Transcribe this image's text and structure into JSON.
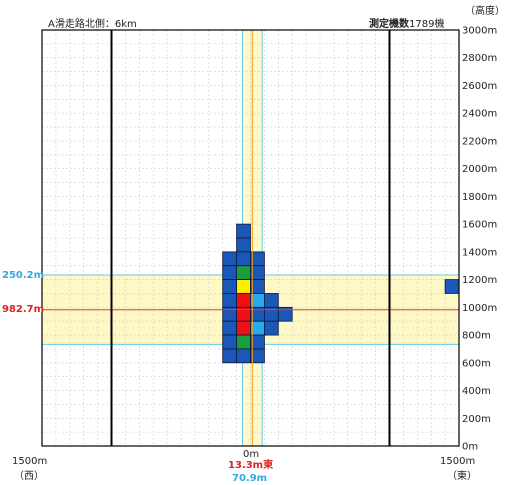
{
  "header": {
    "subtitle": "A滑走路北側：6km",
    "count_label": "測定機数",
    "count_value": "1789機",
    "altitude_unit": "（高度）"
  },
  "axes": {
    "x_left_label": "1500m",
    "x_right_label": "1500m",
    "x_center_label": "0m",
    "west_label": "（西）",
    "east_label": "（東）"
  },
  "annotations": {
    "left_sd": "250.2m",
    "left_mean": "982.7m",
    "center_offset": "13.3m東",
    "center_sd": "70.9m"
  },
  "colors": {
    "grid": "#cfcfcf",
    "band_fill": "#fdf8c6",
    "sd_line": "#66ccee",
    "mean_line": "#ee3333",
    "center_line": "#e8a020",
    "cell_dark": "#1a57b8",
    "cell_light": "#2aaaee",
    "cell_green": "#1a9e3c",
    "cell_yellow": "#ffee00",
    "cell_red": "#ee1111",
    "cell_border": "#0a1a3a"
  },
  "chart_data": {
    "type": "heatmap",
    "xlim": [
      -1500,
      1500
    ],
    "ylim": [
      0,
      3000
    ],
    "y_ticks": [
      "0m",
      "200m",
      "400m",
      "600m",
      "800m",
      "1000m",
      "1200m",
      "1400m",
      "1600m",
      "1800m",
      "2000m",
      "2200m",
      "2400m",
      "2600m",
      "2800m",
      "3000m"
    ],
    "mean_altitude": 982.7,
    "altitude_sd": 250.2,
    "lateral_mean": 13.3,
    "lateral_sd": 70.9,
    "bold_vertical_lines_x": [
      -1000,
      1000
    ],
    "cell_size": [
      100,
      100
    ],
    "cells": [
      {
        "x": -50,
        "y": 1550,
        "c": "dark"
      },
      {
        "x": -50,
        "y": 1450,
        "c": "dark"
      },
      {
        "x": -150,
        "y": 1350,
        "c": "dark"
      },
      {
        "x": -50,
        "y": 1350,
        "c": "dark"
      },
      {
        "x": 50,
        "y": 1350,
        "c": "dark"
      },
      {
        "x": -150,
        "y": 1250,
        "c": "dark"
      },
      {
        "x": -50,
        "y": 1250,
        "c": "green"
      },
      {
        "x": 50,
        "y": 1250,
        "c": "dark"
      },
      {
        "x": -150,
        "y": 1150,
        "c": "dark"
      },
      {
        "x": -50,
        "y": 1150,
        "c": "yellow"
      },
      {
        "x": 50,
        "y": 1150,
        "c": "dark"
      },
      {
        "x": -150,
        "y": 1050,
        "c": "dark"
      },
      {
        "x": -50,
        "y": 1050,
        "c": "red"
      },
      {
        "x": 50,
        "y": 1050,
        "c": "light"
      },
      {
        "x": 150,
        "y": 1050,
        "c": "dark"
      },
      {
        "x": -150,
        "y": 950,
        "c": "dark"
      },
      {
        "x": -50,
        "y": 950,
        "c": "red"
      },
      {
        "x": 50,
        "y": 950,
        "c": "dark"
      },
      {
        "x": 150,
        "y": 950,
        "c": "dark"
      },
      {
        "x": 250,
        "y": 950,
        "c": "dark"
      },
      {
        "x": -150,
        "y": 850,
        "c": "dark"
      },
      {
        "x": -50,
        "y": 850,
        "c": "red"
      },
      {
        "x": 50,
        "y": 850,
        "c": "light"
      },
      {
        "x": 150,
        "y": 850,
        "c": "dark"
      },
      {
        "x": -150,
        "y": 750,
        "c": "dark"
      },
      {
        "x": -50,
        "y": 750,
        "c": "green"
      },
      {
        "x": 50,
        "y": 750,
        "c": "dark"
      },
      {
        "x": -150,
        "y": 650,
        "c": "dark"
      },
      {
        "x": -50,
        "y": 650,
        "c": "dark"
      },
      {
        "x": 50,
        "y": 650,
        "c": "dark"
      },
      {
        "x": 1450,
        "y": 1150,
        "c": "dark"
      }
    ]
  }
}
